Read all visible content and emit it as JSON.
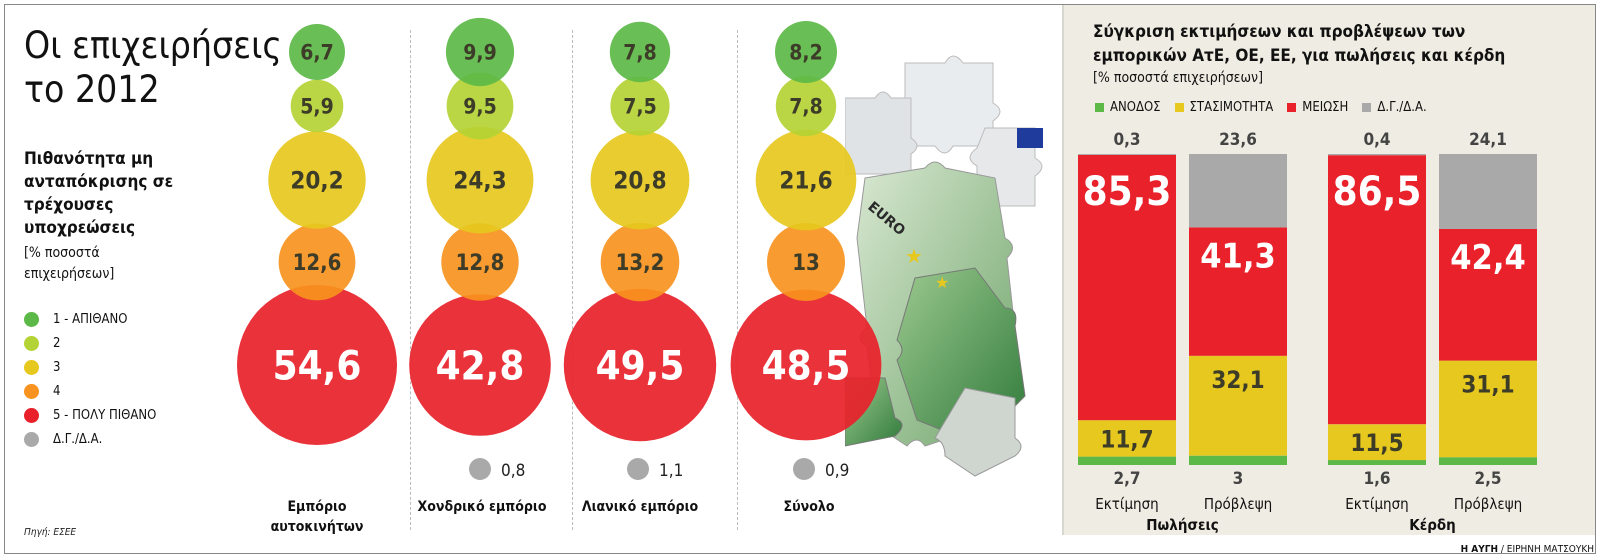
{
  "left": {
    "title_line1": "Οι επιχειρήσεις",
    "title_line2": "το 2012",
    "subtitle": "Πιθανότητα μη ανταπόκρισης σε τρέχουσες υποχρεώσεις",
    "unit_note": "[% ποσοστά επιχειρήσεων]",
    "source": "Πηγή: ΕΣΕΕ",
    "legend": [
      {
        "label": "1 - ΑΠΙΘΑΝΟ",
        "color": "#5cb947"
      },
      {
        "label": "2",
        "color": "#b4d334"
      },
      {
        "label": "3",
        "color": "#e6c81e"
      },
      {
        "label": "4",
        "color": "#f7931e"
      },
      {
        "label": "5 - ΠΟΛΥ ΠΙΘΑΝΟ",
        "color": "#e8212a"
      },
      {
        "label": "Δ.Γ./Δ.Α.",
        "color": "#a9a9a9"
      }
    ]
  },
  "right": {
    "title": "Σύγκριση εκτιμήσεων και προβλέψεων των εμπορικών ΑτΕ, ΟΕ, ΕΕ, για πωλήσεις και κέρδη",
    "unit": "[% ποσοστά επιχειρήσεων]",
    "legend": [
      {
        "label": "ΑΝΟΔΟΣ",
        "color": "#5cb947"
      },
      {
        "label": "ΣΤΑΣΙΜΟΤΗΤΑ",
        "color": "#e6c81e"
      },
      {
        "label": "ΜΕΙΩΣΗ",
        "color": "#e8212a"
      },
      {
        "label": "Δ.Γ./Δ.Α.",
        "color": "#a9a9a9"
      }
    ],
    "credit_paper": "Η ΑΥΓΗ",
    "credit_author": " / ΕΙΡΗΝΗ ΜΑΤΣΟΥΚΗ"
  },
  "chart_data": [
    {
      "type": "bubble-column",
      "title": "Οι επιχειρήσεις το 2012",
      "categories": [
        "Εμπόριο αυτοκινήτων",
        "Χονδρικό εμπόριο",
        "Λιανικό εμπόριο",
        "Σύνολο"
      ],
      "levels": [
        "1 - ΑΠΙΘΑΝΟ",
        "2",
        "3",
        "4",
        "5 - ΠΟΛΥ ΠΙΘΑΝΟ"
      ],
      "values": [
        [
          6.7,
          5.9,
          20.2,
          12.6,
          54.6
        ],
        [
          9.9,
          9.5,
          24.3,
          12.8,
          42.8
        ],
        [
          7.8,
          7.5,
          20.8,
          13.2,
          49.5
        ],
        [
          8.2,
          7.8,
          21.6,
          13,
          48.5
        ]
      ],
      "labels": [
        [
          "6,7",
          "5,9",
          "20,2",
          "12,6",
          "54,6"
        ],
        [
          "9,9",
          "9,5",
          "24,3",
          "12,8",
          "42,8"
        ],
        [
          "7,8",
          "7,5",
          "20,8",
          "13,2",
          "49,5"
        ],
        [
          "8,2",
          "7,8",
          "21,6",
          "13",
          "48,5"
        ]
      ],
      "na_values": [
        null,
        0.8,
        1.1,
        0.9
      ],
      "na_labels": [
        "",
        "0,8",
        "1,1",
        "0,9"
      ]
    },
    {
      "type": "stacked-bar",
      "title": "Σύγκριση εκτιμήσεων και προβλέψεων των εμπορικών ΑτΕ, ΟΕ, ΕΕ, για πωλήσεις και κέρδη",
      "groups": [
        "Πωλήσεις",
        "Κέρδη"
      ],
      "bars": [
        {
          "group": "Πωλήσεις",
          "label": "Εκτίμηση",
          "up": 2.7,
          "stable": 11.7,
          "down": 85.3,
          "na": 0.3,
          "up_label": "2,7",
          "stable_label": "11,7",
          "down_label": "85,3",
          "na_label": "0,3"
        },
        {
          "group": "Πωλήσεις",
          "label": "Πρόβλεψη",
          "up": 3,
          "stable": 32.1,
          "down": 41.3,
          "na": 23.6,
          "up_label": "3",
          "stable_label": "32,1",
          "down_label": "41,3",
          "na_label": "23,6"
        },
        {
          "group": "Κέρδη",
          "label": "Εκτίμηση",
          "up": 1.6,
          "stable": 11.5,
          "down": 86.5,
          "na": 0.4,
          "up_label": "1,6",
          "stable_label": "11,5",
          "down_label": "86,5",
          "na_label": "0,4"
        },
        {
          "group": "Κέρδη",
          "label": "Πρόβλεψη",
          "up": 2.5,
          "stable": 31.1,
          "down": 42.4,
          "na": 24.1,
          "up_label": "2,5",
          "stable_label": "31,1",
          "down_label": "42,4",
          "na_label": "24,1"
        }
      ],
      "ylim": [
        0,
        100
      ]
    }
  ]
}
